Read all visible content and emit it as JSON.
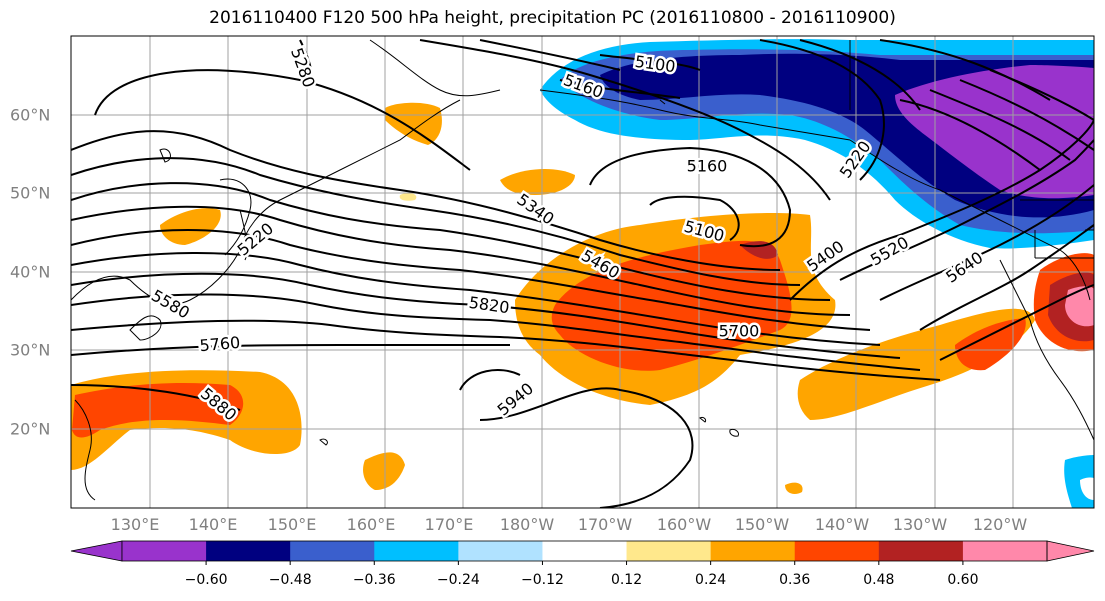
{
  "title": "2016110400 F120 500 hPa height, precipitation PC (2016110800 - 2016110900)",
  "map": {
    "lon_labels": [
      "130°E",
      "140°E",
      "150°E",
      "160°E",
      "170°E",
      "180°W",
      "170°W",
      "160°W",
      "150°W",
      "140°W",
      "130°W",
      "120°W"
    ],
    "lat_labels": [
      "60°N",
      "50°N",
      "40°N",
      "30°N",
      "20°N"
    ],
    "contour_labels": [
      "5280",
      "5100",
      "5160",
      "5160",
      "5100",
      "5220",
      "5220",
      "5340",
      "5460",
      "5400",
      "5520",
      "5640",
      "5580",
      "5820",
      "5700",
      "5760",
      "5880",
      "5940"
    ]
  },
  "colorbar": {
    "tick_labels": [
      "−0.60",
      "−0.48",
      "−0.36",
      "−0.24",
      "−0.12",
      "0.12",
      "0.24",
      "0.36",
      "0.48",
      "0.60"
    ],
    "colors": [
      "#9933cc",
      "#000080",
      "#3a5fcd",
      "#00bfff",
      "#b0e2ff",
      "#ffffff",
      "#ffe88c",
      "#ffa500",
      "#ff4500",
      "#b22222",
      "#ff88aa",
      "#ff88aa"
    ]
  },
  "colors": {
    "contour": "#000000",
    "grid": "#a0a0a0",
    "coast": "#000000"
  }
}
